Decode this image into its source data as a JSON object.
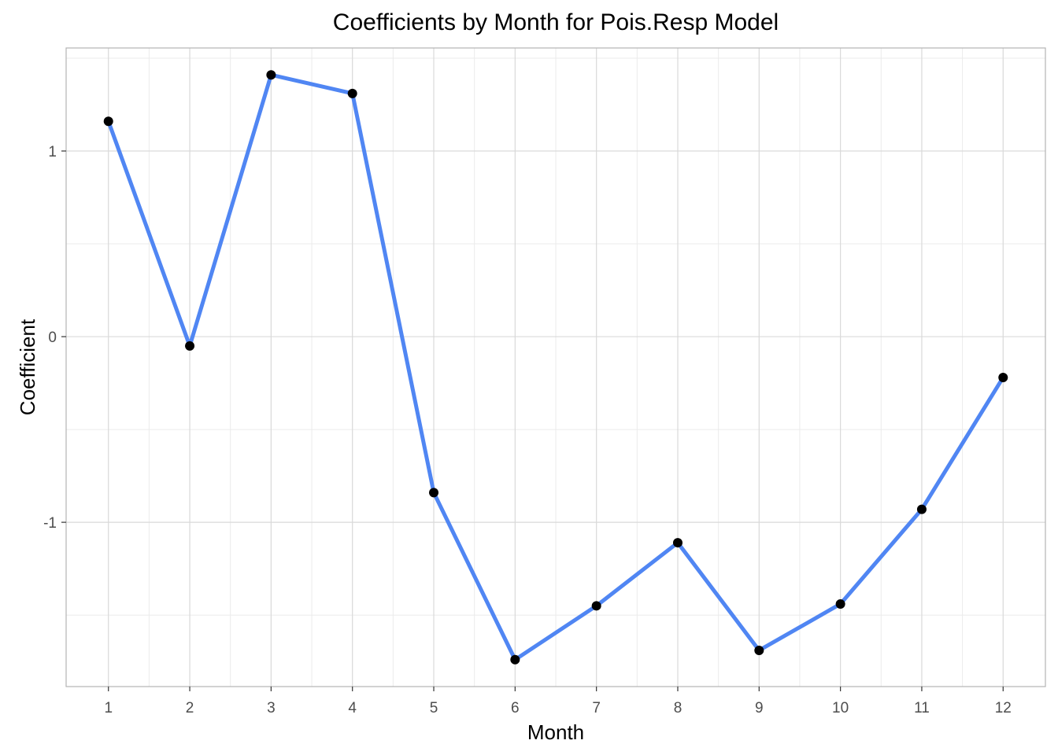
{
  "chart_data": {
    "type": "line",
    "title": "Coefficients by Month for Pois.Resp Model",
    "xlabel": "Month",
    "ylabel": "Coefficient",
    "x": [
      1,
      2,
      3,
      4,
      5,
      6,
      7,
      8,
      9,
      10,
      11,
      12
    ],
    "values": [
      1.16,
      -0.05,
      1.41,
      1.31,
      -0.84,
      -1.74,
      -1.45,
      -1.11,
      -1.69,
      -1.44,
      -0.93,
      -0.22
    ],
    "xticks": [
      "1",
      "2",
      "3",
      "4",
      "5",
      "6",
      "7",
      "8",
      "9",
      "10",
      "11",
      "12"
    ],
    "yticks": [
      "-1",
      "0",
      "1"
    ],
    "ytick_values": [
      -1,
      0,
      1
    ],
    "xlim": [
      0.48,
      12.52
    ],
    "ylim": [
      -1.885,
      1.555
    ],
    "grid": true,
    "colors": {
      "line": "#5086F3",
      "points": "#000000",
      "grid_major": "#D9D9D9",
      "grid_minor": "#EBEBEB",
      "panel_border": "#B3B3B3"
    }
  }
}
